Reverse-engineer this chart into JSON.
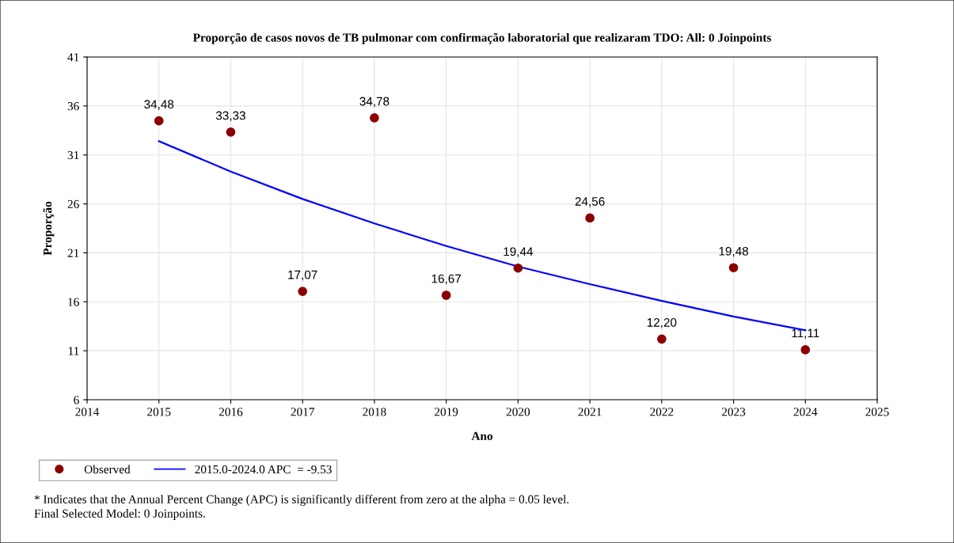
{
  "chart_data": {
    "type": "scatter",
    "title": "Proporção de casos novos de TB pulmonar com confirmação laboratorial que realizaram TDO: All: 0 Joinpoints",
    "xlabel": "Ano",
    "ylabel": "Proporção",
    "xlim": [
      2014,
      2025
    ],
    "xticks": [
      2014,
      2015,
      2016,
      2017,
      2018,
      2019,
      2020,
      2021,
      2022,
      2023,
      2024,
      2025
    ],
    "ylim": [
      6,
      41
    ],
    "yticks": [
      6,
      11,
      16,
      21,
      26,
      31,
      36,
      41
    ],
    "grid": true,
    "legend": "bottom left",
    "series": [
      {
        "name": "Observed",
        "color": "#8b0000",
        "marker": "circle",
        "x": [
          2015,
          2016,
          2017,
          2018,
          2019,
          2020,
          2021,
          2022,
          2023,
          2024
        ],
        "values": [
          34.48,
          33.33,
          17.07,
          34.78,
          16.67,
          19.44,
          24.56,
          12.2,
          19.48,
          11.11
        ],
        "value_labels": [
          "34,48",
          "33,33",
          "17,07",
          "34,78",
          "16,67",
          "19,44",
          "24,56",
          "12,20",
          "19,48",
          "11,11"
        ]
      },
      {
        "name": "2015.0-2024.0 APC  = -9.53",
        "type": "line",
        "color": "#0000ff",
        "marker": "none",
        "line_style": "solid",
        "x": [
          2015,
          2016,
          2017,
          2018,
          2019,
          2020,
          2021,
          2022,
          2023,
          2024
        ],
        "values": [
          32.4,
          29.3,
          26.5,
          24.0,
          21.7,
          19.6,
          17.8,
          16.1,
          14.5,
          13.1
        ]
      }
    ],
    "annotations": [
      "* Indicates that the Annual Percent Change (APC) is significantly different from zero at the alpha = 0.05 level.",
      "Final Selected Model: 0 Joinpoints."
    ]
  }
}
